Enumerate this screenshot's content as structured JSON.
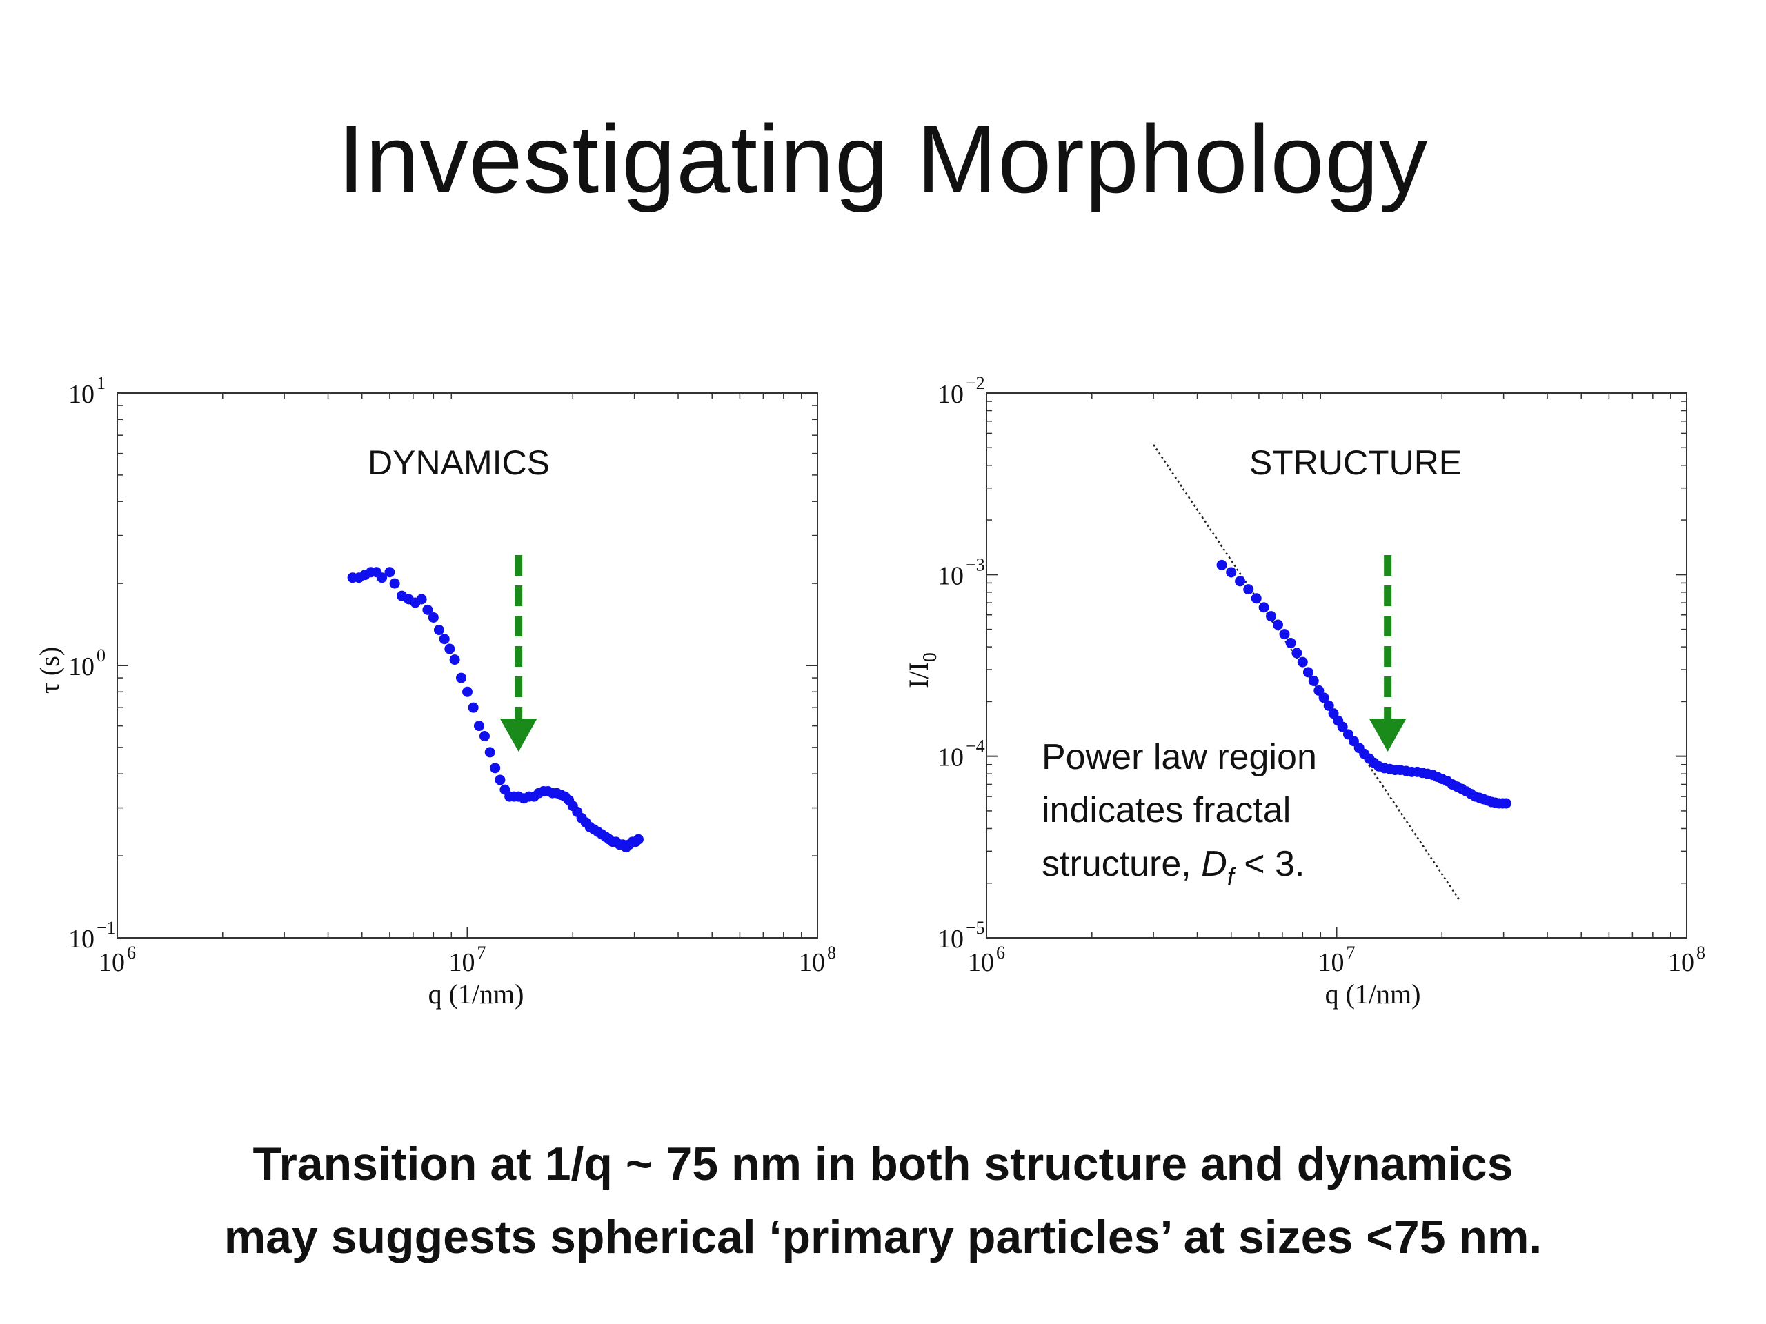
{
  "slide": {
    "title": "Investigating Morphology",
    "caption_line1": "Transition at 1/q ~ 75 nm in both structure and dynamics",
    "caption_line2": "may suggests spherical ‘primary particles’ at sizes <75 nm."
  },
  "colors": {
    "points": "#1010ee",
    "arrow": "#1a8a1a",
    "axis": "#333333"
  },
  "chart_data": [
    {
      "type": "scatter",
      "title": "DYNAMICS",
      "xlabel": "q (1/nm)",
      "ylabel": "τ (s)",
      "xscale": "log",
      "yscale": "log",
      "xlim": [
        1000000,
        100000000
      ],
      "ylim": [
        0.1,
        10
      ],
      "x_ticks": [
        {
          "base": "10",
          "exp": "6"
        },
        {
          "base": "10",
          "exp": "7"
        },
        {
          "base": "10",
          "exp": "8"
        }
      ],
      "y_ticks": [
        {
          "base": "10",
          "exp": "−1"
        },
        {
          "base": "10",
          "exp": "0"
        },
        {
          "base": "10",
          "exp": "1"
        }
      ],
      "arrow_at_x": 14000000,
      "series": [
        {
          "x": [
            4700000,
            4900000,
            5100000,
            5300000,
            5500000,
            5700000,
            6000000,
            6200000,
            6500000,
            6800000,
            7100000,
            7400000,
            7700000,
            8000000,
            8300000,
            8600000,
            8900000,
            9200000,
            9600000,
            10000000,
            10400000,
            10800000,
            11200000,
            11600000,
            12000000,
            12400000,
            12800000,
            13200000,
            13600000,
            14000000,
            14500000,
            15000000,
            15500000,
            16000000,
            16500000,
            17000000,
            17500000,
            18000000,
            18500000,
            19000000,
            19500000,
            20000000,
            20600000,
            21200000,
            21800000,
            22400000,
            23000000,
            23600000,
            24200000,
            24800000,
            25400000,
            26000000,
            26600000,
            27200000,
            27800000,
            28400000,
            29000000,
            29600000,
            30200000,
            30800000
          ],
          "y": [
            2.1,
            2.1,
            2.15,
            2.2,
            2.2,
            2.1,
            2.2,
            2.0,
            1.8,
            1.75,
            1.7,
            1.75,
            1.6,
            1.5,
            1.35,
            1.25,
            1.15,
            1.05,
            0.9,
            0.8,
            0.7,
            0.6,
            0.55,
            0.48,
            0.42,
            0.38,
            0.35,
            0.33,
            0.33,
            0.33,
            0.325,
            0.33,
            0.33,
            0.34,
            0.345,
            0.345,
            0.34,
            0.34,
            0.335,
            0.33,
            0.32,
            0.305,
            0.29,
            0.275,
            0.265,
            0.255,
            0.25,
            0.245,
            0.24,
            0.235,
            0.23,
            0.225,
            0.225,
            0.22,
            0.22,
            0.215,
            0.22,
            0.225,
            0.225,
            0.23
          ]
        }
      ]
    },
    {
      "type": "scatter",
      "title": "STRUCTURE",
      "xlabel": "q (1/nm)",
      "ylabel": "I/I",
      "ylabel_sub": "0",
      "xscale": "log",
      "yscale": "log",
      "xlim": [
        1000000,
        100000000
      ],
      "ylim": [
        1e-05,
        0.01
      ],
      "x_ticks": [
        {
          "base": "10",
          "exp": "6"
        },
        {
          "base": "10",
          "exp": "7"
        },
        {
          "base": "10",
          "exp": "8"
        }
      ],
      "y_ticks": [
        {
          "base": "10",
          "exp": "−5"
        },
        {
          "base": "10",
          "exp": "−4"
        },
        {
          "base": "10",
          "exp": "−3"
        },
        {
          "base": "10",
          "exp": "−2"
        }
      ],
      "arrow_at_x": 14000000,
      "annotation_line1": "Power law region",
      "annotation_line2": "indicates fractal",
      "annotation_line3_pre": "structure, ",
      "annotation_line3_D": "D",
      "annotation_line3_sub": "f",
      "annotation_line3_post": " < 3.",
      "power_law_line": {
        "x": [
          3000000,
          22500000
        ],
        "y": [
          0.0052,
          1.6e-05
        ]
      },
      "series": [
        {
          "x": [
            4700000,
            5000000,
            5300000,
            5600000,
            5900000,
            6200000,
            6500000,
            6800000,
            7100000,
            7400000,
            7700000,
            8000000,
            8300000,
            8600000,
            8900000,
            9200000,
            9500000,
            9800000,
            10100000,
            10400000,
            10800000,
            11200000,
            11600000,
            12000000,
            12400000,
            12800000,
            13200000,
            13700000,
            14200000,
            14700000,
            15200000,
            15800000,
            16400000,
            17000000,
            17600000,
            18200000,
            18800000,
            19400000,
            20000000,
            20700000,
            21400000,
            22100000,
            22800000,
            23500000,
            24200000,
            24900000,
            25600000,
            26300000,
            27000000,
            27700000,
            28400000,
            29100000,
            29800000,
            30500000
          ],
          "y": [
            0.00113,
            0.00103,
            0.00092,
            0.00083,
            0.00074,
            0.00066,
            0.00059,
            0.00053,
            0.00047,
            0.00042,
            0.00037,
            0.00033,
            0.00029,
            0.00026,
            0.00023,
            0.00021,
            0.00019,
            0.000172,
            0.000157,
            0.000145,
            0.000132,
            0.000121,
            0.000111,
            0.000103,
            9.7e-05,
            9.2e-05,
            8.8e-05,
            8.6e-05,
            8.5e-05,
            8.4e-05,
            8.4e-05,
            8.3e-05,
            8.2e-05,
            8.2e-05,
            8.1e-05,
            8e-05,
            7.9e-05,
            7.7e-05,
            7.5e-05,
            7.3e-05,
            7e-05,
            6.8e-05,
            6.6e-05,
            6.4e-05,
            6.2e-05,
            6e-05,
            5.9e-05,
            5.8e-05,
            5.7e-05,
            5.6e-05,
            5.55e-05,
            5.5e-05,
            5.5e-05,
            5.5e-05
          ]
        }
      ]
    }
  ]
}
